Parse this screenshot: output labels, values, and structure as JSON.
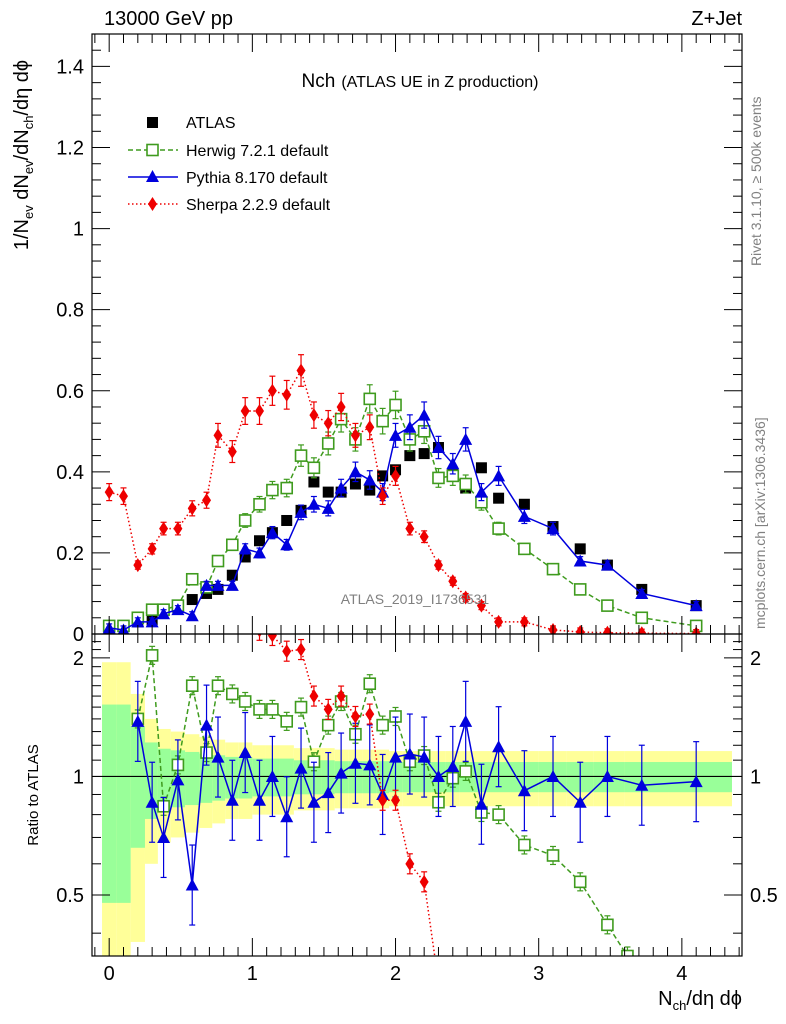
{
  "header": {
    "energy_label": "13000 GeV pp",
    "process_label": "Z+Jet"
  },
  "side_labels": {
    "rivet": "Rivet 3.1.10, ≥ 500k events",
    "mcplots": "mcplots.cern.ch [arXiv:1306.3436]"
  },
  "watermark": "ATLAS_2019_I1736531",
  "colors": {
    "atlas": "#000000",
    "herwig": "#3f9b1e",
    "pythia": "#0000dd",
    "sherpa": "#ee0000",
    "band_inner": "#99ff99",
    "band_outer": "#ffff99"
  },
  "chart_data": [
    {
      "type": "scatter",
      "panel": "main",
      "title_main": "Nch",
      "title_sub": "(ATLAS UE in Z production)",
      "ylabel": "1/N_ev dN_ev/dN_ch/dη dϕ",
      "xlim": [
        -0.12,
        4.42
      ],
      "ylim": [
        0,
        1.48
      ],
      "yticks": [
        "0",
        "0.2",
        "0.4",
        "0.6",
        "0.8",
        "1",
        "1.2",
        "1.4"
      ],
      "yticks_values": [
        0,
        0.2,
        0.4,
        0.6,
        0.8,
        1.0,
        1.2,
        1.4
      ],
      "legend_position": "top-left",
      "series": [
        {
          "name": "ATLAS",
          "marker": "filled-square",
          "x": [
            0.0,
            0.1,
            0.2,
            0.3,
            0.38,
            0.48,
            0.58,
            0.68,
            0.76,
            0.86,
            0.95,
            1.05,
            1.14,
            1.24,
            1.34,
            1.43,
            1.53,
            1.62,
            1.72,
            1.82,
            1.91,
            2.0,
            2.1,
            2.2,
            2.3,
            2.4,
            2.49,
            2.6,
            2.72,
            2.9,
            3.1,
            3.29,
            3.48,
            3.72,
            4.1
          ],
          "y": [
            0.015,
            0.02,
            0.03,
            0.035,
            0.06,
            0.065,
            0.085,
            0.1,
            0.11,
            0.145,
            0.19,
            0.23,
            0.25,
            0.28,
            0.305,
            0.375,
            0.35,
            0.35,
            0.37,
            0.355,
            0.39,
            0.405,
            0.44,
            0.445,
            0.46,
            0.395,
            0.36,
            0.41,
            0.335,
            0.32,
            0.265,
            0.21,
            0.17,
            0.11,
            0.07
          ]
        },
        {
          "name": "Herwig 7.2.1 default",
          "marker": "open-square",
          "line": "dashed",
          "x": [
            0.0,
            0.1,
            0.2,
            0.3,
            0.38,
            0.48,
            0.58,
            0.68,
            0.76,
            0.86,
            0.95,
            1.05,
            1.14,
            1.24,
            1.34,
            1.43,
            1.53,
            1.62,
            1.72,
            1.82,
            1.91,
            2.0,
            2.1,
            2.2,
            2.3,
            2.4,
            2.49,
            2.6,
            2.72,
            2.9,
            3.1,
            3.29,
            3.48,
            3.72,
            4.1
          ],
          "y": [
            0.02,
            0.02,
            0.04,
            0.06,
            0.06,
            0.07,
            0.135,
            0.115,
            0.18,
            0.22,
            0.28,
            0.32,
            0.355,
            0.36,
            0.44,
            0.41,
            0.47,
            0.53,
            0.48,
            0.58,
            0.525,
            0.565,
            0.48,
            0.5,
            0.385,
            0.39,
            0.37,
            0.325,
            0.26,
            0.21,
            0.16,
            0.11,
            0.07,
            0.04,
            0.02
          ]
        },
        {
          "name": "Pythia 8.170 default",
          "marker": "filled-triangle",
          "line": "solid",
          "x": [
            0.0,
            0.1,
            0.2,
            0.3,
            0.38,
            0.48,
            0.58,
            0.68,
            0.76,
            0.86,
            0.95,
            1.05,
            1.14,
            1.24,
            1.34,
            1.43,
            1.53,
            1.62,
            1.72,
            1.82,
            1.91,
            2.0,
            2.1,
            2.2,
            2.3,
            2.4,
            2.49,
            2.6,
            2.72,
            2.9,
            3.1,
            3.29,
            3.48,
            3.72,
            4.1
          ],
          "y": [
            0.015,
            0.01,
            0.03,
            0.03,
            0.05,
            0.06,
            0.045,
            0.12,
            0.12,
            0.12,
            0.21,
            0.2,
            0.25,
            0.22,
            0.3,
            0.32,
            0.31,
            0.36,
            0.4,
            0.38,
            0.35,
            0.49,
            0.51,
            0.54,
            0.46,
            0.42,
            0.48,
            0.35,
            0.39,
            0.29,
            0.26,
            0.18,
            0.17,
            0.1,
            0.07
          ]
        },
        {
          "name": "Sherpa 2.2.9 default",
          "marker": "filled-diamond",
          "line": "dotted",
          "x": [
            0.0,
            0.1,
            0.2,
            0.3,
            0.38,
            0.48,
            0.58,
            0.68,
            0.76,
            0.86,
            0.95,
            1.05,
            1.14,
            1.24,
            1.34,
            1.43,
            1.53,
            1.62,
            1.72,
            1.82,
            1.91,
            2.0,
            2.1,
            2.2,
            2.3,
            2.4,
            2.49,
            2.6,
            2.72,
            2.9,
            3.1,
            3.29,
            3.48,
            3.72,
            4.1
          ],
          "y": [
            0.35,
            0.34,
            0.17,
            0.21,
            0.26,
            0.26,
            0.31,
            0.33,
            0.49,
            0.45,
            0.55,
            0.55,
            0.6,
            0.59,
            0.65,
            0.54,
            0.52,
            0.56,
            0.49,
            0.51,
            0.34,
            0.39,
            0.26,
            0.24,
            0.17,
            0.13,
            0.09,
            0.07,
            0.03,
            0.03,
            0.01,
            0.005,
            0.003,
            0.002,
            0.001
          ]
        }
      ]
    },
    {
      "type": "scatter",
      "panel": "ratio",
      "ylabel": "Ratio to ATLAS",
      "xlabel": "N_ch/dη dϕ",
      "xlim": [
        -0.12,
        4.42
      ],
      "ylim": [
        0.35,
        2.3
      ],
      "yticks": [
        "0.5",
        "1",
        "2"
      ],
      "yticks_values": [
        0.5,
        1.0,
        2.0
      ],
      "xticks": [
        "0",
        "1",
        "2",
        "3",
        "4"
      ],
      "xticks_values": [
        0,
        1,
        2,
        3,
        4
      ],
      "reference_line": 1.0,
      "series": [
        {
          "name": "Herwig 7.2.1 default",
          "x": [
            0.2,
            0.3,
            0.38,
            0.48,
            0.58,
            0.68,
            0.76,
            0.86,
            0.95,
            1.05,
            1.14,
            1.24,
            1.34,
            1.43,
            1.53,
            1.62,
            1.72,
            1.82,
            1.91,
            2.0,
            2.1,
            2.2,
            2.3,
            2.4,
            2.49,
            2.6,
            2.72,
            2.9,
            3.1,
            3.29,
            3.48,
            3.62
          ],
          "y": [
            1.4,
            2.03,
            0.84,
            1.07,
            1.7,
            1.15,
            1.7,
            1.62,
            1.55,
            1.48,
            1.48,
            1.38,
            1.5,
            1.09,
            1.35,
            1.55,
            1.28,
            1.72,
            1.35,
            1.42,
            1.09,
            1.13,
            0.86,
            0.99,
            1.03,
            0.81,
            0.8,
            0.67,
            0.63,
            0.54,
            0.42,
            0.35
          ]
        },
        {
          "name": "Pythia 8.170 default",
          "x": [
            0.2,
            0.3,
            0.38,
            0.48,
            0.58,
            0.68,
            0.76,
            0.86,
            0.95,
            1.05,
            1.14,
            1.24,
            1.34,
            1.43,
            1.53,
            1.62,
            1.72,
            1.82,
            1.91,
            2.0,
            2.1,
            2.2,
            2.3,
            2.4,
            2.49,
            2.6,
            2.72,
            2.9,
            3.1,
            3.29,
            3.48,
            3.72,
            4.1
          ],
          "y": [
            1.38,
            0.86,
            0.7,
            0.98,
            0.53,
            1.35,
            1.12,
            0.87,
            1.15,
            0.87,
            1.0,
            0.79,
            1.05,
            0.86,
            0.91,
            1.02,
            1.08,
            1.07,
            0.9,
            1.12,
            1.14,
            1.12,
            1.0,
            1.06,
            1.38,
            0.85,
            1.19,
            0.92,
            1.0,
            0.86,
            1.0,
            0.95,
            0.97
          ]
        },
        {
          "name": "Sherpa 2.2.9 default",
          "x": [
            1.05,
            1.14,
            1.24,
            1.34,
            1.43,
            1.53,
            1.62,
            1.72,
            1.82,
            1.91,
            2.0,
            2.1,
            2.2,
            2.3
          ],
          "y": [
            2.35,
            2.28,
            2.08,
            2.1,
            1.6,
            1.48,
            1.6,
            1.42,
            1.44,
            0.87,
            0.87,
            0.6,
            0.54,
            0.3
          ]
        }
      ]
    }
  ]
}
